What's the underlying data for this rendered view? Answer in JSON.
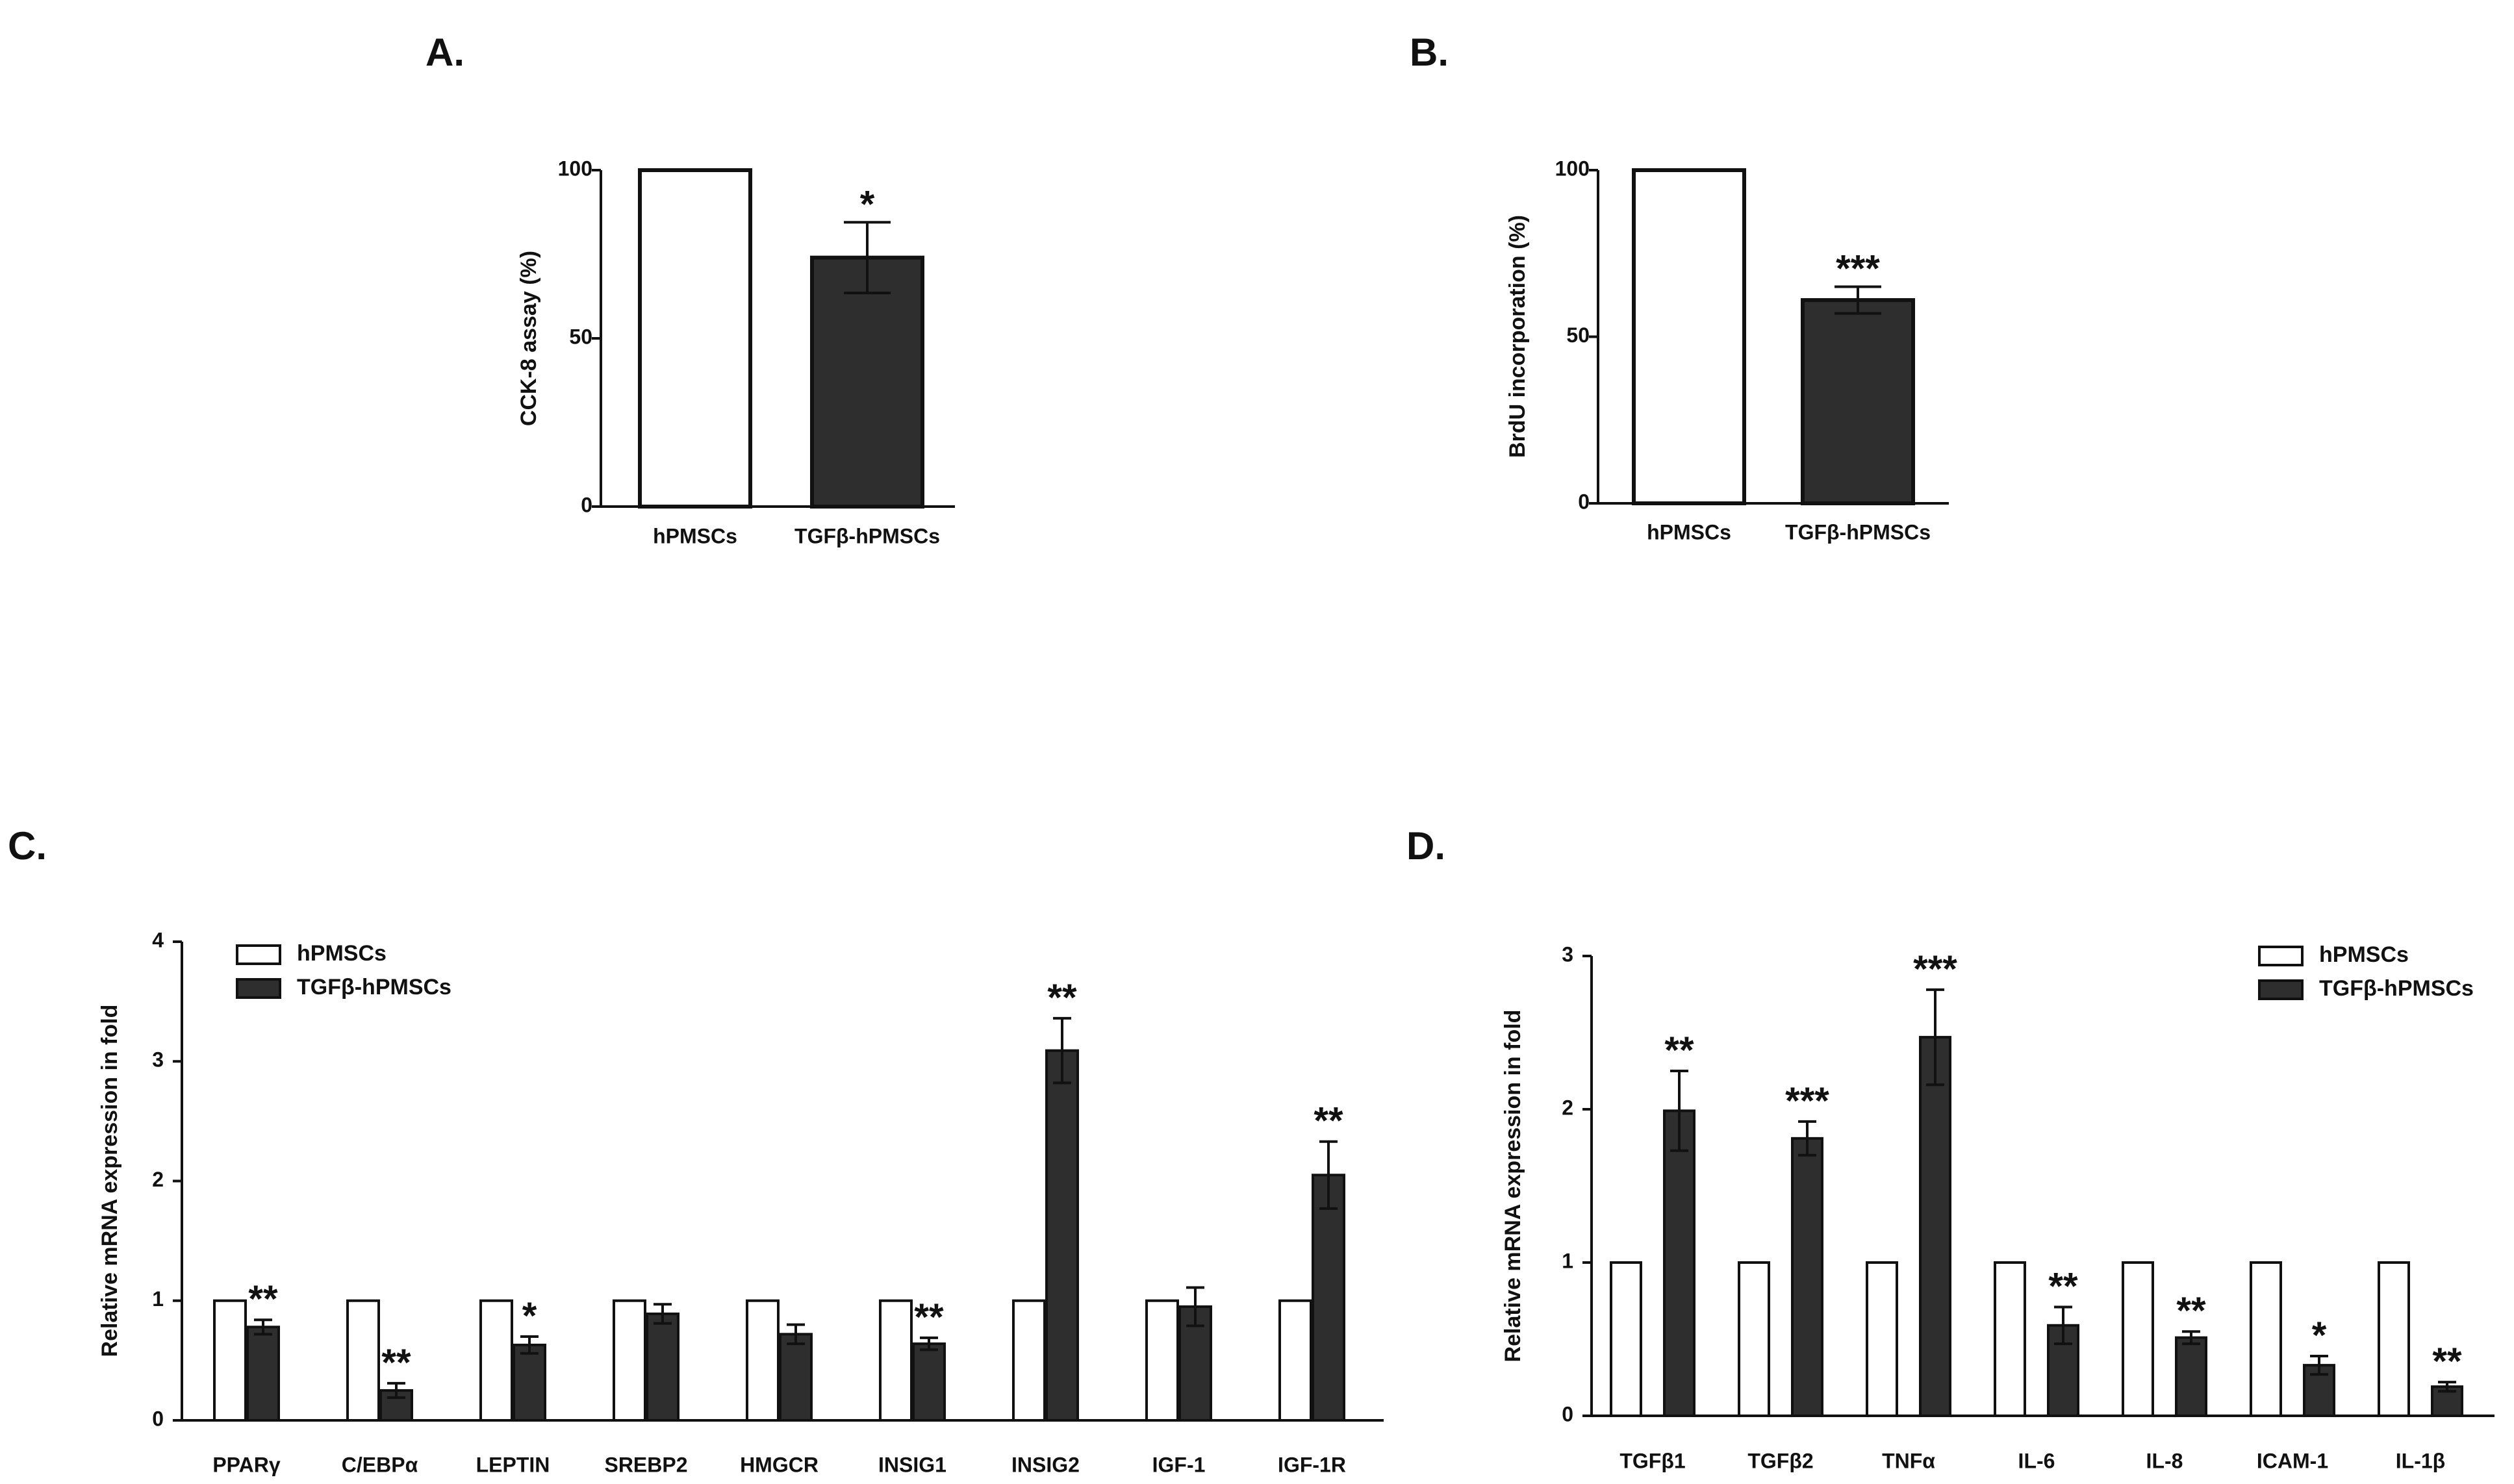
{
  "colors": {
    "control_fill": "#ffffff",
    "treated_fill": "#2e2e2e",
    "stroke": "#111111"
  },
  "chart_data": [
    {
      "panel": "A.",
      "type": "bar",
      "categories": [
        "hPMSCs",
        "TGFβ-hPMSCs"
      ],
      "values": [
        100,
        74
      ],
      "errors": [
        0,
        10.5
      ],
      "significance": [
        "",
        "*"
      ],
      "ylabel": "CCK-8 assay (%)",
      "ylim": [
        0,
        100
      ],
      "yticks": [
        0,
        50,
        100
      ]
    },
    {
      "panel": "B.",
      "type": "bar",
      "categories": [
        "hPMSCs",
        "TGFβ-hPMSCs"
      ],
      "values": [
        100,
        61
      ],
      "errors": [
        0,
        4
      ],
      "significance": [
        "",
        "***"
      ],
      "ylabel": "BrdU incorporation (%)",
      "ylim": [
        0,
        100
      ],
      "yticks": [
        0,
        50,
        100
      ]
    },
    {
      "panel": "C.",
      "type": "bar",
      "categories": [
        "PPARγ",
        "C/EBPα",
        "LEPTIN",
        "SREBP2",
        "HMGCR",
        "INSIG1",
        "INSIG2",
        "IGF-1",
        "IGF-1R"
      ],
      "series": [
        {
          "name": "hPMSCs",
          "values": [
            1,
            1,
            1,
            1,
            1,
            1,
            1,
            1,
            1
          ],
          "errors": [
            0,
            0,
            0,
            0,
            0,
            0,
            0,
            0,
            0
          ]
        },
        {
          "name": "TGFβ-hPMSCs",
          "values": [
            0.78,
            0.25,
            0.63,
            0.89,
            0.72,
            0.64,
            3.09,
            0.95,
            2.05
          ],
          "errors": [
            0.06,
            0.06,
            0.07,
            0.08,
            0.08,
            0.05,
            0.27,
            0.16,
            0.28
          ]
        }
      ],
      "significance": [
        "**",
        "**",
        "*",
        "",
        "",
        "**",
        "**",
        "",
        "**"
      ],
      "ylabel": "Relative mRNA expression in fold",
      "ylim": [
        0,
        4
      ],
      "yticks": [
        0,
        1,
        2,
        3,
        4
      ],
      "legend": [
        "hPMSCs",
        "TGFβ-hPMSCs"
      ]
    },
    {
      "panel": "D.",
      "type": "bar",
      "categories": [
        "TGFβ1",
        "TGFβ2",
        "TNFα",
        "IL-6",
        "IL-8",
        "ICAM-1",
        "IL-1β"
      ],
      "series": [
        {
          "name": "hPMSCs",
          "values": [
            1,
            1,
            1,
            1,
            1,
            1,
            1
          ],
          "errors": [
            0,
            0,
            0,
            0,
            0,
            0,
            0
          ]
        },
        {
          "name": "TGFβ-hPMSCs",
          "values": [
            1.99,
            1.81,
            2.47,
            0.59,
            0.51,
            0.33,
            0.19
          ],
          "errors": [
            0.26,
            0.11,
            0.31,
            0.12,
            0.04,
            0.06,
            0.03
          ]
        }
      ],
      "significance": [
        "**",
        "***",
        "***",
        "**",
        "**",
        "*",
        "**"
      ],
      "ylabel": "Relative mRNA expression in fold",
      "ylim": [
        0,
        3
      ],
      "yticks": [
        0,
        1,
        2,
        3
      ],
      "legend": [
        "hPMSCs",
        "TGFβ-hPMSCs"
      ]
    }
  ]
}
